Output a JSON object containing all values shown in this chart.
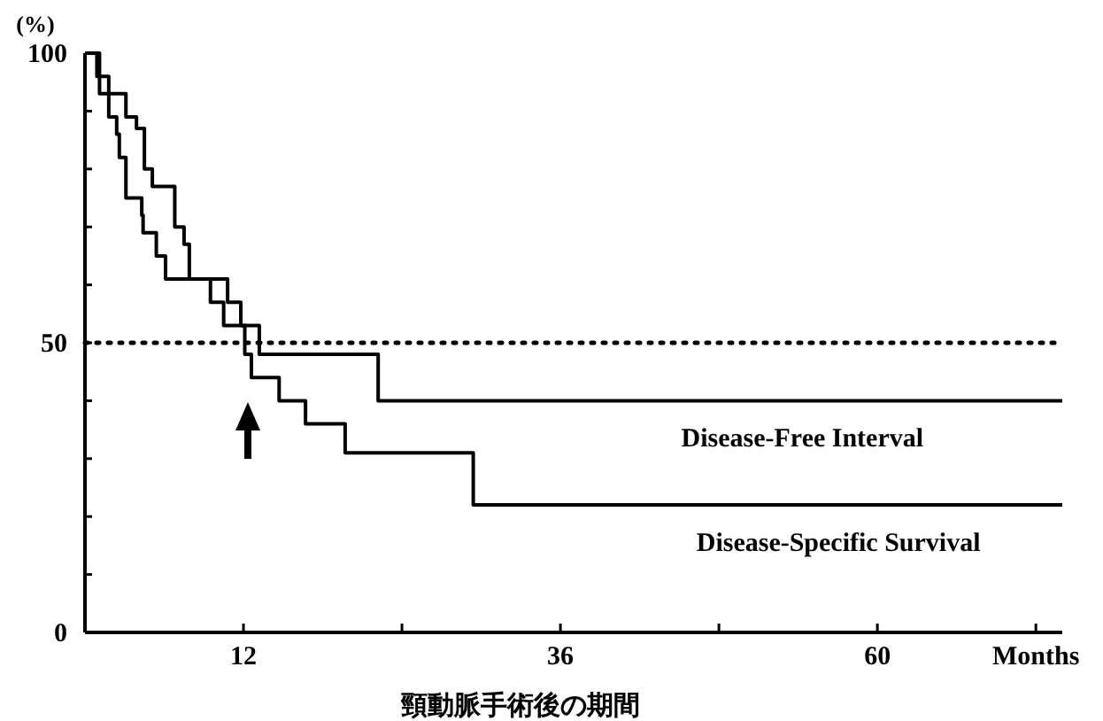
{
  "chart_data": {
    "type": "step",
    "ylabel": "(%)",
    "xlabel": "頸動脈手術後の期間",
    "xlim": [
      0,
      74
    ],
    "ylim": [
      0,
      100
    ],
    "xticks": [
      12,
      {
        "value": 24,
        "label": null
      },
      36,
      {
        "value": 48,
        "label": null
      },
      60,
      {
        "value": 72,
        "label": "Months"
      }
    ],
    "yticks": [
      0,
      {
        "value": 10,
        "label": null
      },
      {
        "value": 20,
        "label": null
      },
      {
        "value": 30,
        "label": null
      },
      {
        "value": 40,
        "label": null
      },
      50,
      {
        "value": 60,
        "label": null
      },
      {
        "value": 70,
        "label": null
      },
      {
        "value": 80,
        "label": null
      },
      {
        "value": 90,
        "label": null
      },
      100
    ],
    "ref_lines": [
      {
        "axis": "y",
        "value": 50,
        "line_style": "dotted",
        "color": "#000000"
      }
    ],
    "line_style": "solid",
    "legend": false,
    "grid": false,
    "series": [
      {
        "name": "Disease-Free Interval",
        "color": "#000000",
        "x": [
          0,
          0.9,
          1.8,
          3.1,
          3.9,
          4.5,
          5.1,
          6.8,
          7.5,
          7.9,
          10.8,
          11.8,
          13.2,
          22.2,
          74
        ],
        "values": [
          100,
          96,
          93,
          89,
          87,
          80,
          77,
          70,
          67,
          61,
          57,
          53,
          48,
          40,
          40
        ]
      },
      {
        "name": "Disease-Specific Survival",
        "color": "#000000",
        "x": [
          0,
          1.1,
          1.8,
          2.4,
          2.6,
          3.1,
          4.3,
          4.4,
          5.4,
          6.1,
          9.5,
          10.5,
          12.1,
          12.6,
          14.7,
          16.7,
          19.7,
          29.4,
          74
        ],
        "values": [
          100,
          93,
          89,
          86,
          82,
          75,
          72,
          69,
          65,
          61,
          57,
          53,
          48,
          44,
          40,
          36,
          31,
          22,
          22
        ]
      }
    ]
  }
}
